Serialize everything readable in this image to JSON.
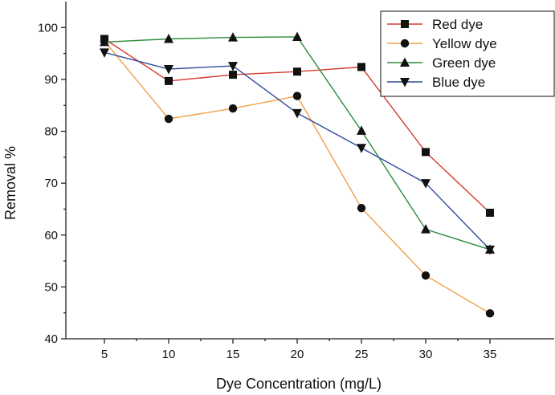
{
  "chart_data": {
    "type": "line",
    "title": "",
    "xlabel": "Dye Concentration (mg/L)",
    "ylabel": "Removal %",
    "x": [
      5,
      10,
      15,
      20,
      25,
      30,
      35
    ],
    "xlim": [
      2,
      40
    ],
    "ylim": [
      40,
      105
    ],
    "xticks": [
      5,
      10,
      15,
      20,
      25,
      30,
      35
    ],
    "yticks": [
      40,
      50,
      60,
      70,
      80,
      90,
      100
    ],
    "legend_position": "top-right",
    "grid": false,
    "series": [
      {
        "name": "Red dye",
        "marker": "square",
        "color": "#d63a2f",
        "values": [
          97.8,
          89.7,
          90.9,
          91.5,
          92.4,
          76.0,
          64.3
        ]
      },
      {
        "name": "Yellow dye",
        "marker": "circle",
        "color": "#f0a04b",
        "values": [
          97.4,
          82.4,
          84.4,
          86.8,
          65.2,
          52.2,
          44.9
        ]
      },
      {
        "name": "Green dye",
        "marker": "triangle-up",
        "color": "#2e8b3c",
        "values": [
          97.2,
          97.8,
          98.1,
          98.2,
          80.1,
          61.1,
          57.2
        ]
      },
      {
        "name": "Blue dye",
        "marker": "triangle-down",
        "color": "#2f4d9c",
        "values": [
          95.2,
          92.0,
          92.6,
          83.5,
          76.8,
          70.0,
          57.2
        ]
      }
    ]
  }
}
